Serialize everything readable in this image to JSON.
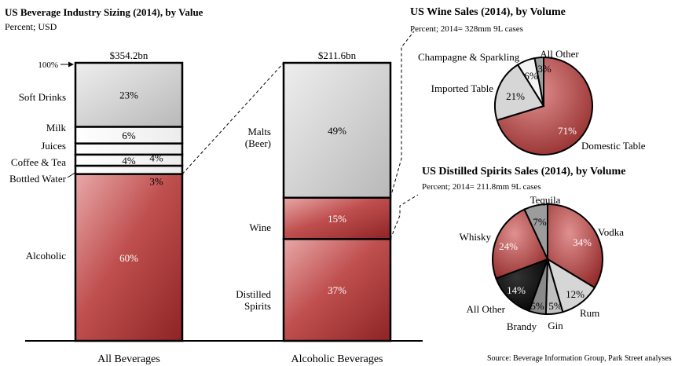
{
  "chart_data": [
    {
      "type": "bar",
      "title": "US Beverage Industry Sizing (2014), by Value",
      "subtitle": "Percent; USD",
      "axis_label": "100%",
      "categories": [
        "All Beverages",
        "Alcoholic Beverages"
      ],
      "stacks": [
        {
          "category": "All Beverages",
          "total": "$354.2bn",
          "segments": [
            {
              "label": "Alcoholic",
              "value": 60,
              "value_label": "60%"
            },
            {
              "label": "Bottled Water",
              "value": 3,
              "value_label": "3%"
            },
            {
              "label": "Coffee & Tea",
              "value": 4,
              "value_label": "4%"
            },
            {
              "label": "Juices",
              "value": 4,
              "value_label": "4%"
            },
            {
              "label": "Milk",
              "value": 6,
              "value_label": "6%"
            },
            {
              "label": "Soft Drinks",
              "value": 23,
              "value_label": "23%"
            }
          ]
        },
        {
          "category": "Alcoholic Beverages",
          "total": "$211.6bn",
          "segments": [
            {
              "label": "Distilled Spirits",
              "value": 37,
              "value_label": "37%"
            },
            {
              "label": "Wine",
              "value": 15,
              "value_label": "15%"
            },
            {
              "label": "Malts (Beer)",
              "value": 49,
              "value_label": "49%"
            }
          ]
        }
      ]
    },
    {
      "type": "pie",
      "title": "US Wine Sales (2014), by Volume",
      "subtitle": "Percent; 2014= 328mm 9L cases",
      "slices": [
        {
          "label": "Domestic Table",
          "value": 71,
          "value_label": "71%",
          "color": "#b43c3c"
        },
        {
          "label": "Imported Table",
          "value": 21,
          "value_label": "21%",
          "color": "#d4d4d4"
        },
        {
          "label": "Champagne & Sparkling",
          "value": 6,
          "value_label": "6%",
          "color": "#f0f0f0"
        },
        {
          "label": "All Other",
          "value": 3,
          "value_label": "3%",
          "color": "#9a9a9a"
        }
      ]
    },
    {
      "type": "pie",
      "title": "US Distilled Spirits Sales (2014), by Volume",
      "subtitle": "Percent; 2014= 211.8mm 9L cases",
      "slices": [
        {
          "label": "Vodka",
          "value": 34,
          "value_label": "34%",
          "color": "#b43c3c"
        },
        {
          "label": "Rum",
          "value": 12,
          "value_label": "12%",
          "color": "#d4d4d4"
        },
        {
          "label": "Gin",
          "value": 5,
          "value_label": "5%",
          "color": "#bdbdbd"
        },
        {
          "label": "Brandy",
          "value": 5,
          "value_label": "5%",
          "color": "#8c8c8c"
        },
        {
          "label": "All Other",
          "value": 14,
          "value_label": "14%",
          "color": "#000000"
        },
        {
          "label": "Whisky",
          "value": 24,
          "value_label": "24%",
          "color": "#b43c3c"
        },
        {
          "label": "Tequila",
          "value": 7,
          "value_label": "7%",
          "color": "#9a9a9a"
        }
      ]
    }
  ],
  "source": "Source: Beverage Information Group, Park Street analyses",
  "colors": {
    "red": "#b43c3c",
    "grey": "#c8c8c8",
    "light": "#f2f2f2"
  }
}
